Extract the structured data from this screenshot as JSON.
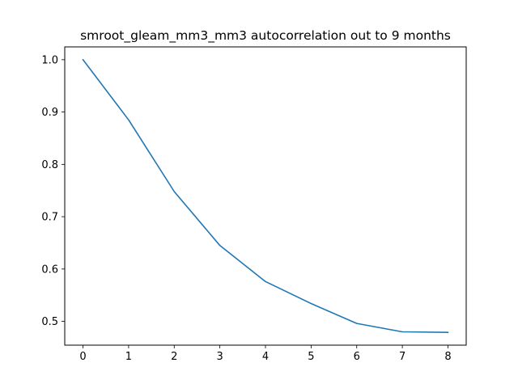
{
  "chart_data": {
    "type": "line",
    "title": "smroot_gleam_mm3_mm3 autocorrelation out to 9 months",
    "xlabel": "",
    "ylabel": "",
    "x": [
      0,
      1,
      2,
      3,
      4,
      5,
      6,
      7,
      8
    ],
    "series": [
      {
        "values": [
          1.0,
          0.885,
          0.748,
          0.645,
          0.576,
          0.534,
          0.496,
          0.48,
          0.479
        ]
      }
    ],
    "xlim": [
      -0.4,
      8.4
    ],
    "ylim": [
      0.4545,
      1.0245
    ],
    "xticks": [
      "0",
      "1",
      "2",
      "3",
      "4",
      "5",
      "6",
      "7",
      "8"
    ],
    "yticks": [
      "0.5",
      "0.6",
      "0.7",
      "0.8",
      "0.9",
      "1.0"
    ],
    "grid": false,
    "colors": {
      "line": "#1f77b4"
    }
  }
}
